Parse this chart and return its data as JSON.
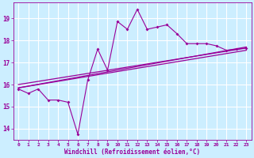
{
  "xlabel": "Windchill (Refroidissement éolien,°C)",
  "bg_color": "#cceeff",
  "grid_color": "#ffffff",
  "line_color": "#990099",
  "x_ticks": [
    0,
    1,
    2,
    3,
    4,
    5,
    6,
    7,
    8,
    9,
    10,
    11,
    12,
    13,
    14,
    15,
    16,
    17,
    18,
    19,
    20,
    21,
    22,
    23
  ],
  "y_ticks": [
    14,
    15,
    16,
    17,
    18,
    19
  ],
  "xlim": [
    -0.5,
    23.5
  ],
  "ylim": [
    13.5,
    19.7
  ],
  "line1_x": [
    0,
    1,
    2,
    3,
    4,
    5,
    6,
    7,
    8,
    9,
    10,
    11,
    12,
    13,
    14,
    15,
    16,
    17,
    18,
    19,
    20,
    21,
    22,
    23
  ],
  "line1_y": [
    15.8,
    15.6,
    15.8,
    15.3,
    15.3,
    15.2,
    13.75,
    16.2,
    17.6,
    16.65,
    18.85,
    18.5,
    19.4,
    18.5,
    18.6,
    18.7,
    18.3,
    17.85,
    17.85,
    17.85,
    17.75,
    17.55,
    17.6,
    17.65
  ],
  "line2_x": [
    0,
    23
  ],
  "line2_y": [
    15.85,
    17.7
  ],
  "line3_x": [
    0,
    23
  ],
  "line3_y": [
    15.85,
    17.55
  ],
  "line4_x": [
    0,
    23
  ],
  "line4_y": [
    16.0,
    17.65
  ]
}
